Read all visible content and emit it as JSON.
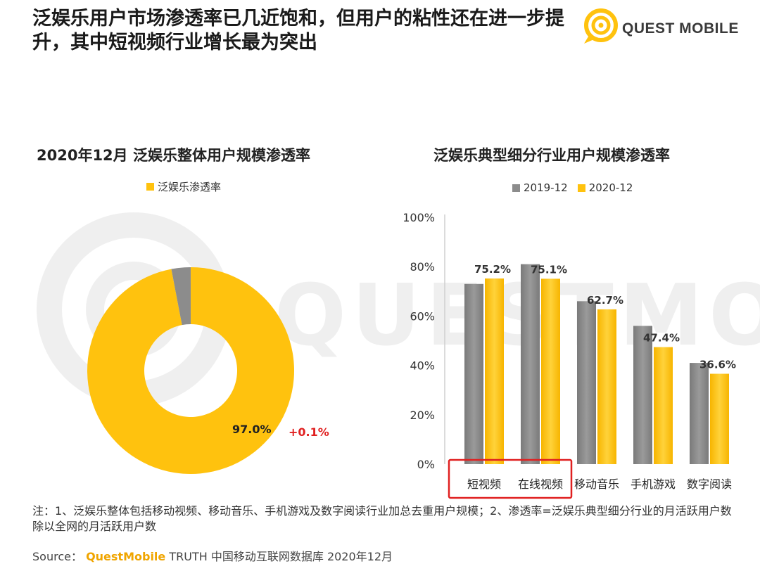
{
  "headline": "泛娱乐用户市场渗透率已几近饱和，但用户的粘性还在进一步提升，其中短视频行业增长最为突出",
  "brand": {
    "name": "QUEST MOBILE",
    "watermark": "QUESTMOBILE",
    "logo_icon": "questmobile-logo-icon"
  },
  "colors": {
    "yellow": "#FFC20E",
    "gray": "#8C8C8C",
    "red_text": "#E02020",
    "highlight_box": "#E02020"
  },
  "chart_data": [
    {
      "type": "pie",
      "title": "2020年12月 泛娱乐整体用户规模渗透率",
      "legend": [
        "泛娱乐渗透率"
      ],
      "slices": [
        {
          "label": "泛娱乐渗透率",
          "value": 97.0,
          "display": "97.0%"
        },
        {
          "label": "",
          "value": 3.0,
          "display": ""
        }
      ],
      "annotation": "+0.1%",
      "donut": true
    },
    {
      "type": "bar",
      "title": "泛娱乐典型细分行业用户规模渗透率",
      "categories": [
        "短视频",
        "在线视频",
        "移动音乐",
        "手机游戏",
        "数字阅读"
      ],
      "series": [
        {
          "name": "2019-12",
          "values": [
            73,
            81,
            66,
            56,
            41
          ]
        },
        {
          "name": "2020-12",
          "values": [
            75.2,
            75.1,
            62.7,
            47.4,
            36.6
          ]
        }
      ],
      "data_labels": [
        "75.2%",
        "75.1%",
        "62.7%",
        "47.4%",
        "36.6%"
      ],
      "ylim": [
        0,
        100
      ],
      "yticks": [
        "0%",
        "20%",
        "40%",
        "60%",
        "80%",
        "100%"
      ],
      "highlighted_categories": [
        "短视频",
        "在线视频"
      ],
      "legend_placement": "top"
    }
  ],
  "note": "注：1、泛娱乐整体包括移动视频、移动音乐、手机游戏及数字阅读行业加总去重用户规模；2、渗透率=泛娱乐典型细分行业的月活跃用户数除以全网的月活跃用户数",
  "source": {
    "label": "Source：",
    "brand": "QuestMobile",
    "text": "TRUTH 中国移动互联网数据库 2020年12月"
  }
}
